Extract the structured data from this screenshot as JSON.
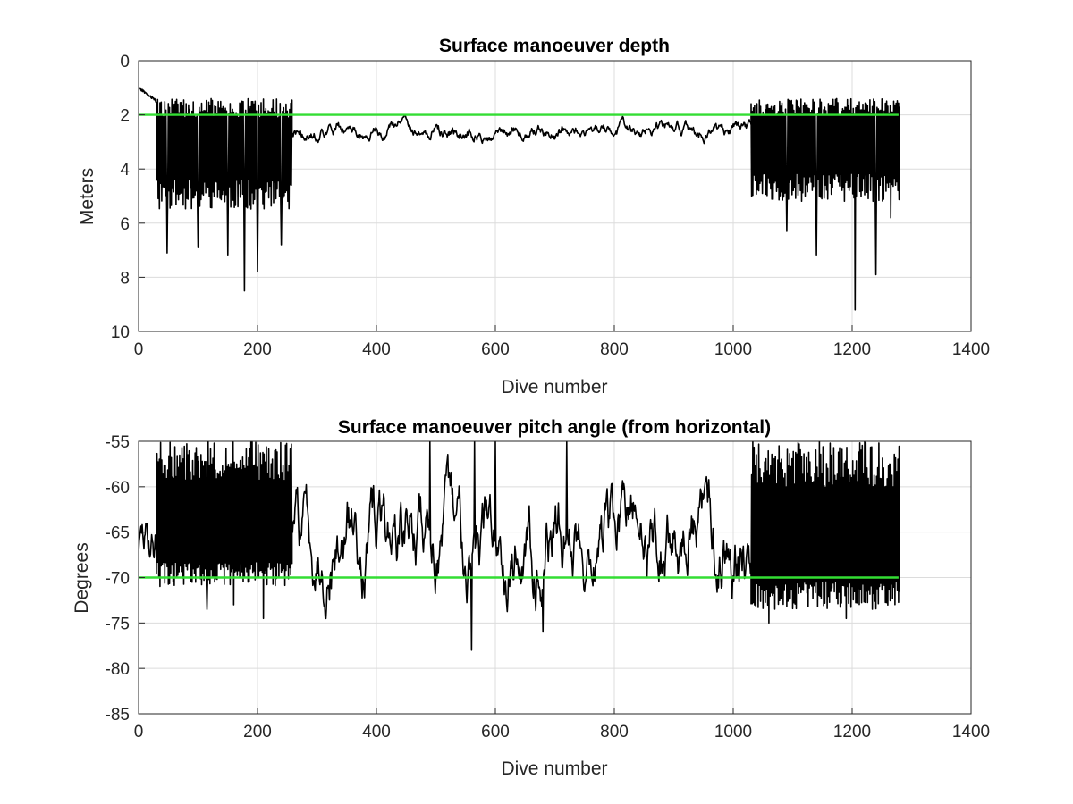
{
  "chart_data": [
    {
      "type": "line",
      "title": "Surface manoeuver depth",
      "xlabel": "Dive number",
      "ylabel": "Meters",
      "xlim": [
        0,
        1400
      ],
      "ylim": [
        0,
        10
      ],
      "y_reversed": true,
      "xticks": [
        "0",
        "200",
        "400",
        "600",
        "800",
        "1000",
        "1200",
        "1400"
      ],
      "yticks": [
        "0",
        "2",
        "4",
        "6",
        "8",
        "10"
      ],
      "grid": true,
      "series": [
        {
          "color": "#000000",
          "segments": [
            {
              "x_start": 0,
              "x_end": 30,
              "mode": "trend",
              "low": 1.0,
              "high": 1.5
            },
            {
              "x_start": 30,
              "x_end": 258,
              "mode": "oscillating",
              "low": 1.4,
              "high": 5.5,
              "spikes": [
                [
                  178,
                  8.5
                ],
                [
                  150,
                  7.2
                ],
                [
                  100,
                  6.9
                ],
                [
                  48,
                  7.1
                ],
                [
                  200,
                  7.8
                ],
                [
                  240,
                  6.8
                ]
              ]
            },
            {
              "x_start": 258,
              "x_end": 1030,
              "mode": "noisy",
              "low": 2.0,
              "high": 3.1
            },
            {
              "x_start": 1030,
              "x_end": 1280,
              "mode": "oscillating",
              "low": 1.4,
              "high": 5.2,
              "spikes": [
                [
                  1205,
                  9.2
                ],
                [
                  1140,
                  7.2
                ],
                [
                  1090,
                  6.3
                ],
                [
                  1240,
                  7.9
                ],
                [
                  1265,
                  5.8
                ]
              ]
            }
          ]
        },
        {
          "color": "#33dd33",
          "x": [
            0,
            1278
          ],
          "values": [
            2,
            2
          ]
        }
      ]
    },
    {
      "type": "line",
      "title": "Surface manoeuver pitch angle (from horizontal)",
      "xlabel": "Dive number",
      "ylabel": "Degrees",
      "xlim": [
        0,
        1400
      ],
      "ylim": [
        -85,
        -55
      ],
      "xticks": [
        "0",
        "200",
        "400",
        "600",
        "800",
        "1000",
        "1200",
        "1400"
      ],
      "yticks": [
        "-55",
        "-60",
        "-65",
        "-70",
        "-75",
        "-80",
        "-85"
      ],
      "grid": true,
      "series": [
        {
          "color": "#000000",
          "segments": [
            {
              "x_start": 0,
              "x_end": 30,
              "mode": "noisy",
              "low": -73,
              "high": -60
            },
            {
              "x_start": 30,
              "x_end": 258,
              "mode": "oscillating",
              "low": -71,
              "high": -55,
              "spikes": [
                [
                  115,
                  -73.5
                ],
                [
                  210,
                  -74.5
                ],
                [
                  160,
                  -73
                ]
              ]
            },
            {
              "x_start": 258,
              "x_end": 1030,
              "mode": "noisy",
              "low": -74.5,
              "high": -56,
              "spikes": [
                [
                  560,
                  -78
                ],
                [
                  565,
                  -55
                ],
                [
                  720,
                  -55
                ],
                [
                  490,
                  -55
                ],
                [
                  600,
                  -55
                ],
                [
                  680,
                  -76
                ]
              ]
            },
            {
              "x_start": 1030,
              "x_end": 1280,
              "mode": "oscillating",
              "low": -73.5,
              "high": -55,
              "spikes": [
                [
                  1060,
                  -75
                ],
                [
                  1190,
                  -74.5
                ]
              ]
            }
          ]
        },
        {
          "color": "#33dd33",
          "x": [
            0,
            1278
          ],
          "values": [
            -70,
            -70
          ]
        }
      ]
    }
  ]
}
